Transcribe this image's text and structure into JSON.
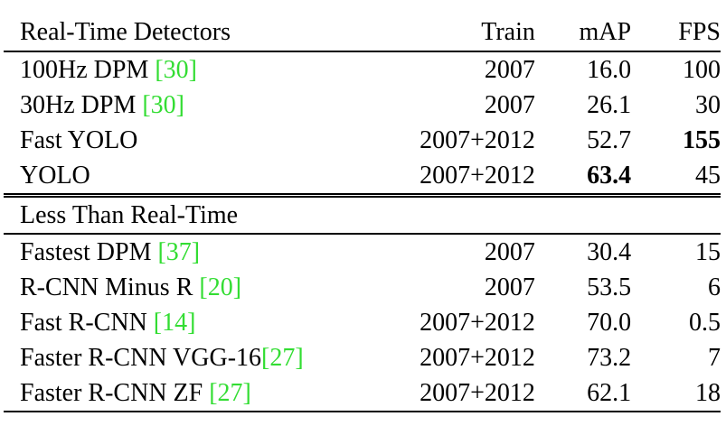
{
  "table": {
    "headers": {
      "method": "Real-Time Detectors",
      "train": "Train",
      "map": "mAP",
      "fps": "FPS"
    },
    "realtime_rows": [
      {
        "name": "100Hz DPM ",
        "ref": "[30]",
        "train": "2007",
        "map": "16.0",
        "fps": "100"
      },
      {
        "name": "30Hz DPM ",
        "ref": "[30]",
        "train": "2007",
        "map": "26.1",
        "fps": "30"
      },
      {
        "name": "Fast YOLO",
        "ref": "",
        "train": "2007+2012",
        "map": "52.7",
        "fps": "155"
      },
      {
        "name": "YOLO",
        "ref": "",
        "train": "2007+2012",
        "map": "63.4",
        "fps": "45"
      }
    ],
    "section2_label": "Less Than Real-Time",
    "slow_rows": [
      {
        "name": "Fastest DPM ",
        "ref": "[37]",
        "train": "2007",
        "map": "30.4",
        "fps": "15"
      },
      {
        "name": "R-CNN Minus R ",
        "ref": "[20]",
        "train": "2007",
        "map": "53.5",
        "fps": "6"
      },
      {
        "name": "Fast R-CNN ",
        "ref": "[14]",
        "train": "2007+2012",
        "map": "70.0",
        "fps": "0.5"
      },
      {
        "name": "Faster R-CNN VGG-16",
        "ref": "[27]",
        "train": "2007+2012",
        "map": "73.2",
        "fps": "7"
      },
      {
        "name": "Faster R-CNN ZF ",
        "ref": "[27]",
        "train": "2007+2012",
        "map": "62.1",
        "fps": "18"
      }
    ],
    "ref_color": "#33dd33"
  }
}
